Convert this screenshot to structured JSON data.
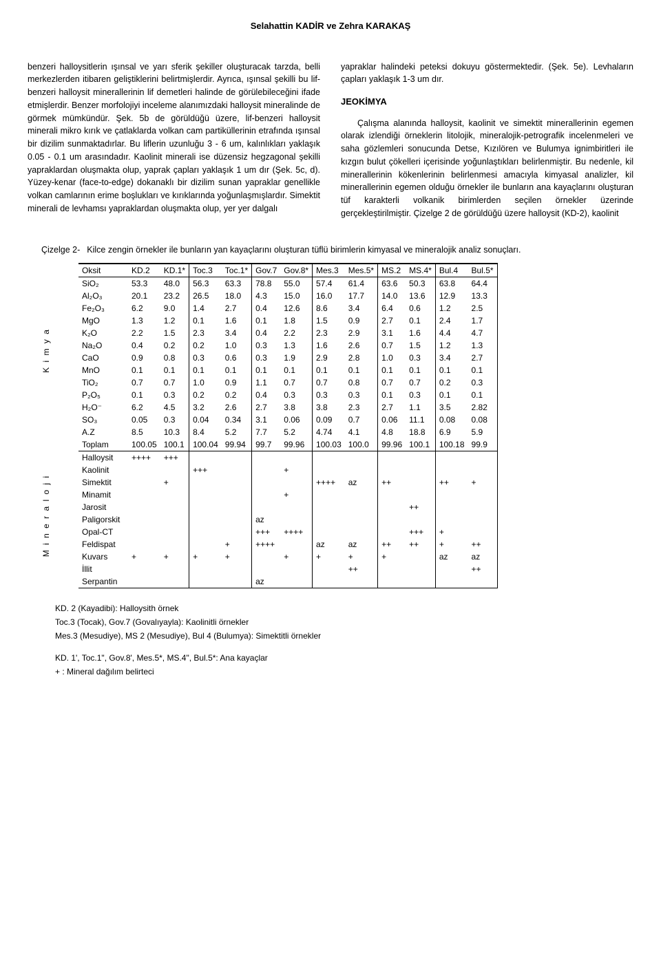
{
  "header": "Selahattin KADİR ve Zehra KARAKAŞ",
  "col1": {
    "p1": "benzeri halloysitlerin ışınsal ve yarı sferik şekiller oluşturacak tarzda, belli merkezlerden itibaren geliştiklerini belirtmişlerdir. Ayrıca, ışınsal şekilli bu lif-benzeri halloysit minerallerinin lif demetleri halinde de görülebileceğini ifade etmişlerdir. Benzer morfolojiyi inceleme alanımızdaki halloysit mineralinde de görmek mümkündür. Şek. 5b de görüldüğü üzere, lif-benzeri halloysit minerali mikro kırık ve çatlaklarda volkan cam partiküllerinin etrafında ışınsal bir dizilim sunmaktadırlar. Bu liflerin uzunluğu 3 - 6 um, kalınlıkları yaklaşık 0.05 - 0.1 um arasındadır. Kaolinit minerali ise düzensiz hegzagonal şekilli yapraklardan oluşmakta olup, yaprak çapları yaklaşık 1 um dır (Şek. 5c, d). Yüzey-kenar (face-to-edge) dokanaklı bir dizilim sunan yapraklar genellikle volkan camlarının erime boşlukları ve kırıklarında yoğunlaşmışlardır. Simektit minerali de levhamsı yapraklardan oluşmakta olup, yer yer dalgalı"
  },
  "col2": {
    "p1": "yapraklar halindeki peteksi dokuyu göstermektedir. (Şek. 5e). Levhaların çapları yaklaşık 1-3 um dır.",
    "section_title": "JEOKİMYA",
    "p2": "Çalışma alanında halloysit, kaolinit ve simektit minerallerinin egemen olarak izlendiği örneklerin litolojik, mineralojik-petrografik incelenmeleri ve saha gözlemleri sonucunda Detse, Kızılören ve Bulumya ignimbiritleri ile kızgın bulut çökelleri içerisinde yoğunlaştıkları belirlenmiştir. Bu nedenle, kil minerallerinin kökenlerinin belirlenmesi amacıyla kimyasal analizler, kil minerallerinin egemen olduğu örnekler ile bunların ana kayaçlarını oluşturan tüf karakterli volkanik birimlerden seçilen örnekler üzerinde gerçekleştirilmiştir. Çizelge 2 de görüldüğü üzere halloysit (KD-2), kaolinit"
  },
  "table": {
    "caption_label": "Çizelge 2-",
    "caption_text": "Kilce zengin örnekler ile bunların yan kayaçlarını oluşturan tüflü birimlerin kimyasal ve mineralojik analiz sonuçları.",
    "side_label_top": "K i m y a",
    "side_label_bottom": "M i n e r a l o j i",
    "headers": [
      "Oksit",
      "KD.2",
      "KD.1*",
      "Toc.3",
      "Toc.1*",
      "Gov.7",
      "Gov.8*",
      "Mes.3",
      "Mes.5*",
      "MS.2",
      "MS.4*",
      "Bul.4",
      "Bul.5*"
    ],
    "rows_chem": [
      [
        "SiO₂",
        "53.3",
        "48.0",
        "56.3",
        "63.3",
        "78.8",
        "55.0",
        "57.4",
        "61.4",
        "63.6",
        "50.3",
        "63.8",
        "64.4"
      ],
      [
        "Al₂O₃",
        "20.1",
        "23.2",
        "26.5",
        "18.0",
        "4.3",
        "15.0",
        "16.0",
        "17.7",
        "14.0",
        "13.6",
        "12.9",
        "13.3"
      ],
      [
        "Fe₂O₃",
        "6.2",
        "9.0",
        "1.4",
        "2.7",
        "0.4",
        "12.6",
        "8.6",
        "3.4",
        "6.4",
        "0.6",
        "1.2",
        "2.5"
      ],
      [
        "MgO",
        "1.3",
        "1.2",
        "0.1",
        "1.6",
        "0.1",
        "1.8",
        "1.5",
        "0.9",
        "2.7",
        "0.1",
        "2.4",
        "1.7"
      ],
      [
        "K₂O",
        "2.2",
        "1.5",
        "2.3",
        "3.4",
        "0.4",
        "2.2",
        "2.3",
        "2.9",
        "3.1",
        "1.6",
        "4.4",
        "4.7"
      ],
      [
        "Na₂O",
        "0.4",
        "0.2",
        "0.2",
        "1.0",
        "0.3",
        "1.3",
        "1.6",
        "2.6",
        "0.7",
        "1.5",
        "1.2",
        "1.3"
      ],
      [
        "CaO",
        "0.9",
        "0.8",
        "0.3",
        "0.6",
        "0.3",
        "1.9",
        "2.9",
        "2.8",
        "1.0",
        "0.3",
        "3.4",
        "2.7"
      ],
      [
        "MnO",
        "0.1",
        "0.1",
        "0.1",
        "0.1",
        "0.1",
        "0.1",
        "0.1",
        "0.1",
        "0.1",
        "0.1",
        "0.1",
        "0.1"
      ],
      [
        "TiO₂",
        "0.7",
        "0.7",
        "1.0",
        "0.9",
        "1.1",
        "0.7",
        "0.7",
        "0.8",
        "0.7",
        "0.7",
        "0.2",
        "0.3"
      ],
      [
        "P₂O₅",
        "0.1",
        "0.3",
        "0.2",
        "0.2",
        "0.4",
        "0.3",
        "0.3",
        "0.3",
        "0.1",
        "0.3",
        "0.1",
        "0.1"
      ],
      [
        "H₂O⁻",
        "6.2",
        "4.5",
        "3.2",
        "2.6",
        "2.7",
        "3.8",
        "3.8",
        "2.3",
        "2.7",
        "1.1",
        "3.5",
        "2.82"
      ],
      [
        "SO₃",
        "0.05",
        "0.3",
        "0.04",
        "0.34",
        "3.1",
        "0.06",
        "0.09",
        "0.7",
        "0.06",
        "11.1",
        "0.08",
        "0.08"
      ],
      [
        "A.Z",
        "8.5",
        "10.3",
        "8.4",
        "5.2",
        "7.7",
        "5.2",
        "4.74",
        "4.1",
        "4.8",
        "18.8",
        "6.9",
        "5.9"
      ],
      [
        "Toplam",
        "100.05",
        "100.1",
        "100.04",
        "99.94",
        "99.7",
        "99.96",
        "100.03",
        "100.0",
        "99.96",
        "100.1",
        "100.18",
        "99.9"
      ]
    ],
    "rows_min": [
      [
        "Halloysit",
        "++++",
        "+++",
        "",
        "",
        "",
        "",
        "",
        "",
        "",
        "",
        "",
        ""
      ],
      [
        "Kaolinit",
        "",
        "",
        "+++",
        "",
        "",
        "+",
        "",
        "",
        "",
        "",
        "",
        ""
      ],
      [
        "Simektit",
        "",
        "+",
        "",
        "",
        "",
        "",
        "++++",
        "az",
        "++",
        "",
        "++",
        "+"
      ],
      [
        "Minamit",
        "",
        "",
        "",
        "",
        "",
        "+",
        "",
        "",
        "",
        "",
        "",
        ""
      ],
      [
        "Jarosit",
        "",
        "",
        "",
        "",
        "",
        "",
        "",
        "",
        "",
        "++",
        "",
        ""
      ],
      [
        "Paligorskit",
        "",
        "",
        "",
        "",
        "az",
        "",
        "",
        "",
        "",
        "",
        "",
        ""
      ],
      [
        "Opal-CT",
        "",
        "",
        "",
        "",
        "+++",
        "++++",
        "",
        "",
        "",
        "+++",
        "+",
        ""
      ],
      [
        "Feldispat",
        "",
        "",
        "",
        "+",
        "++++",
        "",
        "az",
        "az",
        "++",
        "++",
        "+",
        "++"
      ],
      [
        "Kuvars",
        "+",
        "+",
        "+",
        "+",
        "",
        "+",
        "+",
        "+",
        "+",
        "",
        "az",
        "az"
      ],
      [
        "İllit",
        "",
        "",
        "",
        "",
        "",
        "",
        "",
        "++",
        "",
        "",
        "",
        "++"
      ],
      [
        "Serpantin",
        "",
        "",
        "",
        "",
        "az",
        "",
        "",
        "",
        "",
        "",
        "",
        ""
      ]
    ],
    "group_cols": [
      2,
      4,
      6,
      8,
      10,
      12
    ]
  },
  "footnotes": {
    "l1": "KD. 2 (Kayadibi): Halloysith örnek",
    "l2": "Toc.3 (Tocak), Gov.7 (Govalıyayla): Kaolinitli örnekler",
    "l3": "Mes.3 (Mesudiye), MS 2 (Mesudiye), Bul 4 (Bulumya): Simektitli örnekler",
    "l4": "KD. 1', Toc.1\", Gov.8', Mes.5*, MS.4\", Bul.5*: Ana kayaçlar",
    "l5": "+ : Mineral dağılım belirteci"
  }
}
